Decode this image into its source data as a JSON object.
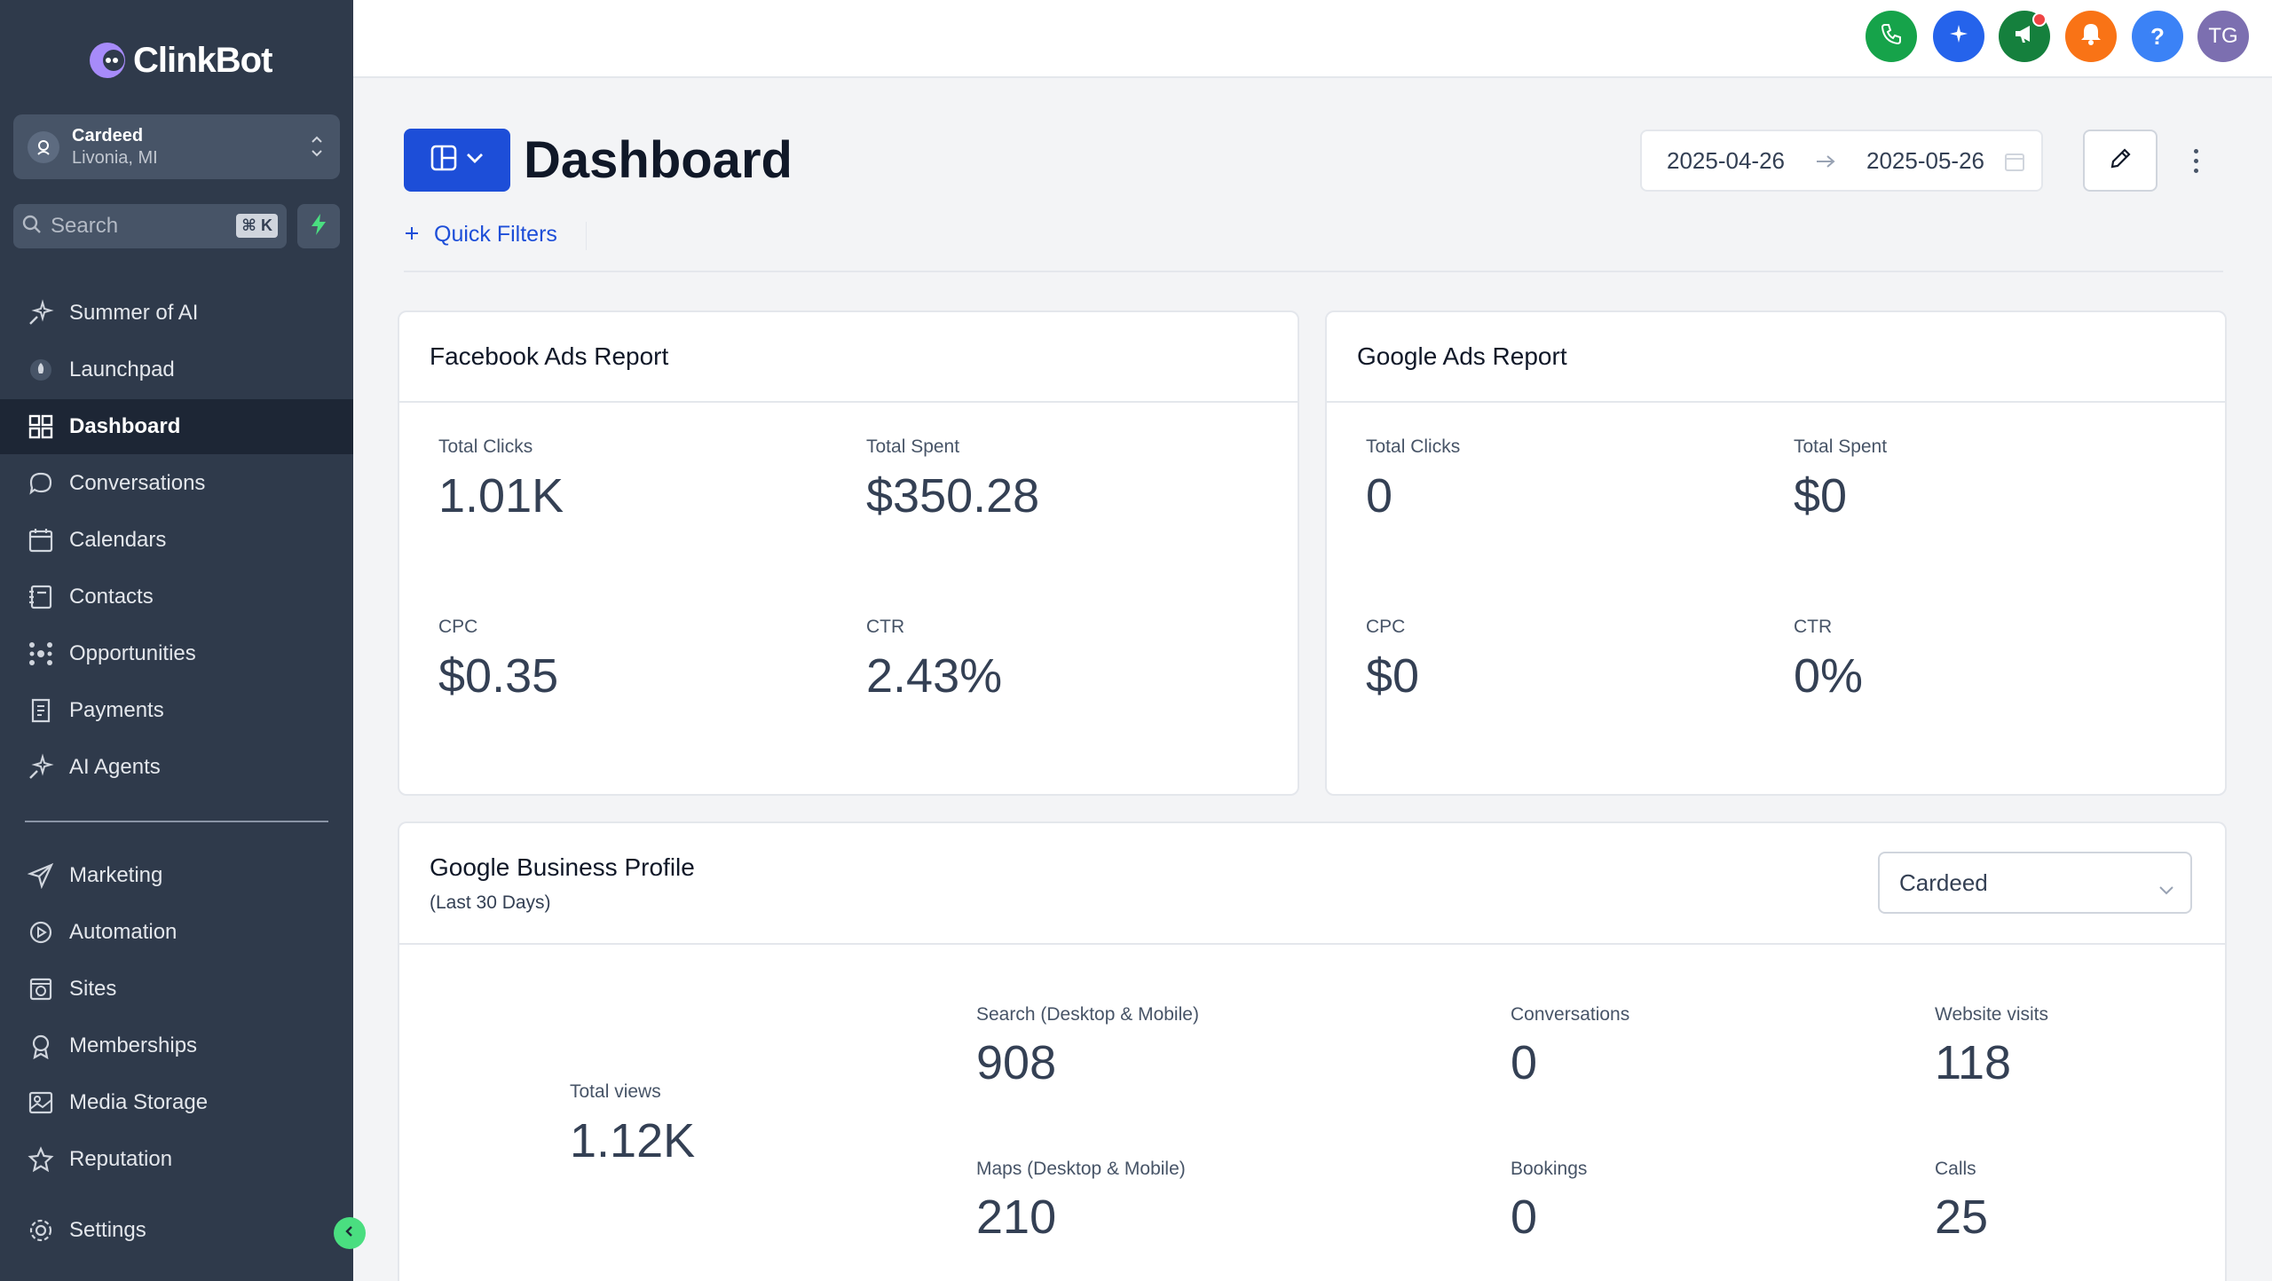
{
  "brand": {
    "name": "ClinkBot"
  },
  "account": {
    "name": "Cardeed",
    "location": "Livonia, MI"
  },
  "search": {
    "placeholder": "Search",
    "shortcut": "⌘ K"
  },
  "nav": {
    "items": [
      {
        "label": "Summer of AI",
        "icon": "sparkle-icon"
      },
      {
        "label": "Launchpad",
        "icon": "rocket-icon"
      },
      {
        "label": "Dashboard",
        "icon": "grid-icon",
        "active": true
      },
      {
        "label": "Conversations",
        "icon": "chat-icon"
      },
      {
        "label": "Calendars",
        "icon": "calendar-icon"
      },
      {
        "label": "Contacts",
        "icon": "contacts-icon"
      },
      {
        "label": "Opportunities",
        "icon": "network-icon"
      },
      {
        "label": "Payments",
        "icon": "receipt-icon"
      },
      {
        "label": "AI Agents",
        "icon": "sparkle-icon"
      }
    ],
    "items2": [
      {
        "label": "Marketing",
        "icon": "send-icon"
      },
      {
        "label": "Automation",
        "icon": "automation-icon"
      },
      {
        "label": "Sites",
        "icon": "globe-icon"
      },
      {
        "label": "Memberships",
        "icon": "award-icon"
      },
      {
        "label": "Media Storage",
        "icon": "image-icon"
      },
      {
        "label": "Reputation",
        "icon": "star-icon"
      }
    ],
    "settings": {
      "label": "Settings",
      "icon": "gear-icon"
    }
  },
  "topbar": {
    "icons": [
      {
        "name": "phone-icon",
        "color": "#16a34a"
      },
      {
        "name": "ai-sparkle-icon",
        "color": "#2563eb"
      },
      {
        "name": "megaphone-icon",
        "color": "#15803d"
      },
      {
        "name": "bell-icon",
        "color": "#f97316"
      },
      {
        "name": "help-icon",
        "color": "#3b82f6",
        "glyph": "?"
      }
    ],
    "avatar": {
      "initials": "TG",
      "color": "#7c6fb0"
    }
  },
  "header": {
    "title": "Dashboard",
    "quick_filters": "Quick Filters",
    "date_start": "2025-04-26",
    "date_end": "2025-05-26"
  },
  "facebook": {
    "title": "Facebook Ads Report",
    "metrics": [
      {
        "label": "Total Clicks",
        "value": "1.01K"
      },
      {
        "label": "Total Spent",
        "value": "$350.28"
      },
      {
        "label": "CPC",
        "value": "$0.35"
      },
      {
        "label": "CTR",
        "value": "2.43%"
      }
    ]
  },
  "google_ads": {
    "title": "Google Ads Report",
    "metrics": [
      {
        "label": "Total Clicks",
        "value": "0"
      },
      {
        "label": "Total Spent",
        "value": "$0"
      },
      {
        "label": "CPC",
        "value": "$0"
      },
      {
        "label": "CTR",
        "value": "0%"
      }
    ]
  },
  "gbp": {
    "title": "Google Business Profile",
    "subtitle": "(Last 30 Days)",
    "selected_location": "Cardeed",
    "total_views_label": "Total views",
    "total_views": "1.12K",
    "metrics": [
      {
        "label": "Search (Desktop & Mobile)",
        "value": "908"
      },
      {
        "label": "Conversations",
        "value": "0"
      },
      {
        "label": "Website visits",
        "value": "118"
      },
      {
        "label": "Maps (Desktop & Mobile)",
        "value": "210"
      },
      {
        "label": "Bookings",
        "value": "0"
      },
      {
        "label": "Calls",
        "value": "25"
      }
    ]
  },
  "colors": {
    "sidebar": "#2f3a4b",
    "primary": "#1d4ed8",
    "accent_green": "#4ade80"
  }
}
